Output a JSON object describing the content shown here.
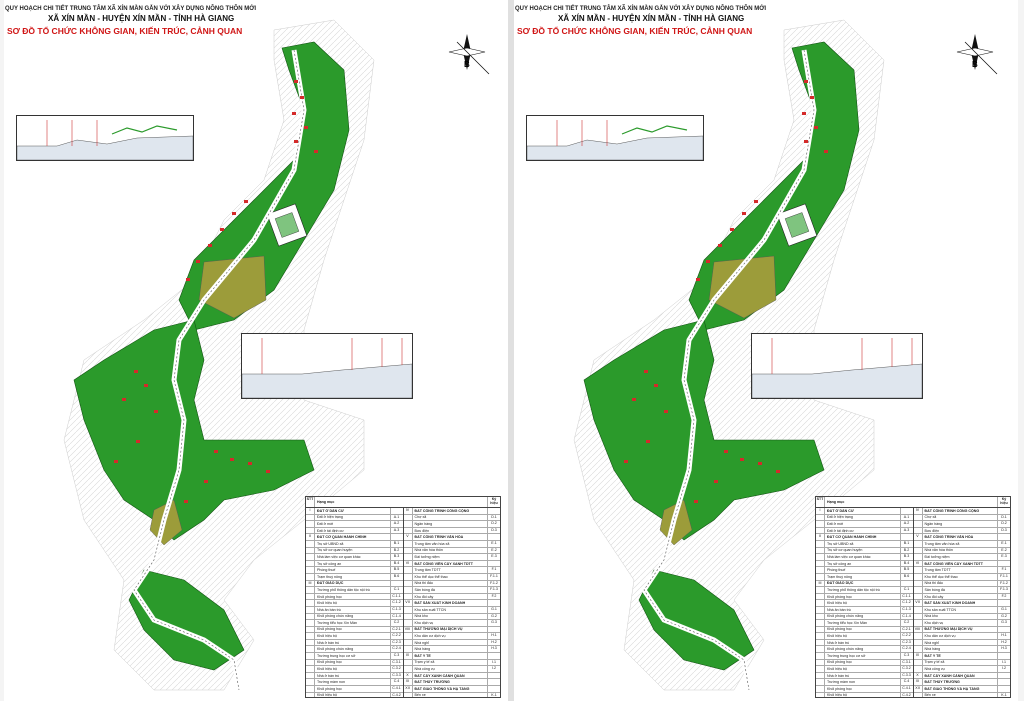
{
  "sheets": [
    {
      "title_line1": "QUY HOẠCH CHI TIẾT TRUNG TÂM XÃ XÍN MẦN GẮN VỚI XÂY DỰNG NÔNG THÔN MỚI",
      "title_line2": "XÃ XÍN MẦN - HUYỆN XÍN MẦN - TỈNH HÀ GIANG",
      "title_line3": "SƠ ĐỒ TỔ CHỨC KHÔNG GIAN, KIẾN TRÚC, CẢNH QUAN",
      "north_label": "B"
    },
    {
      "title_line1": "QUY HOẠCH CHI TIẾT TRUNG TÂM XÃ XÍN MẦN GẮN VỚI XÂY DỰNG NÔNG THÔN MỚI",
      "title_line2": "XÃ XÍN MẦN - HUYỆN XÍN MẦN - TỈNH HÀ GIANG",
      "title_line3": "SƠ ĐỒ TỔ CHỨC KHÔNG GIAN, KIẾN TRÚC, CẢNH QUAN",
      "north_label": "B"
    }
  ],
  "legend": {
    "header": {
      "no": "STT",
      "name": "Hạng mục",
      "code": "Ký hiệu"
    },
    "left_rows": [
      {
        "no": "I",
        "name": "ĐẤT Ở DÂN CƯ",
        "code": "",
        "grp": true
      },
      {
        "no": "",
        "name": "Đất ở hiện trạng",
        "code": "A.1",
        "grp": false
      },
      {
        "no": "",
        "name": "Đất ở mới",
        "code": "A.2",
        "grp": false
      },
      {
        "no": "",
        "name": "Đất ở tái định cư",
        "code": "A.3",
        "grp": false
      },
      {
        "no": "II",
        "name": "ĐẤT CƠ QUAN HÀNH CHÍNH",
        "code": "",
        "grp": true
      },
      {
        "no": "",
        "name": "Trụ sở UBND xã",
        "code": "B.1",
        "grp": false
      },
      {
        "no": "",
        "name": "Trụ sở cơ quan huyện",
        "code": "B.2",
        "grp": false
      },
      {
        "no": "",
        "name": "Nhà làm việc cơ quan khác",
        "code": "B.3",
        "grp": false
      },
      {
        "no": "",
        "name": "Trụ sở công an",
        "code": "B.4",
        "grp": false
      },
      {
        "no": "",
        "name": "Phòng thuế",
        "code": "B.5",
        "grp": false
      },
      {
        "no": "",
        "name": "Trạm thuỷ nông",
        "code": "B.6",
        "grp": false
      },
      {
        "no": "III",
        "name": "ĐẤT GIÁO DỤC",
        "code": "",
        "grp": true
      },
      {
        "no": "",
        "name": "Trường phổ thông dân tộc nội trú",
        "code": "C.1",
        "grp": false
      },
      {
        "no": "",
        "name": "Khối phòng học",
        "code": "C.1.1",
        "grp": false
      },
      {
        "no": "",
        "name": "Khối hiệu bộ",
        "code": "C.1.2",
        "grp": false
      },
      {
        "no": "",
        "name": "Nhà ăn bán trú",
        "code": "C.1.3",
        "grp": false
      },
      {
        "no": "",
        "name": "Khối phòng chức năng",
        "code": "C.1.4",
        "grp": false
      },
      {
        "no": "",
        "name": "Trường tiểu học Xín Mần",
        "code": "C.2",
        "grp": false
      },
      {
        "no": "",
        "name": "Khối phòng học",
        "code": "C.2.1",
        "grp": false
      },
      {
        "no": "",
        "name": "Khối hiệu bộ",
        "code": "C.2.2",
        "grp": false
      },
      {
        "no": "",
        "name": "Nhà ở bán trú",
        "code": "C.2.3",
        "grp": false
      },
      {
        "no": "",
        "name": "Khối phòng chức năng",
        "code": "C.2.4",
        "grp": false
      },
      {
        "no": "",
        "name": "Trường trung học cơ sở",
        "code": "C.3",
        "grp": false
      },
      {
        "no": "",
        "name": "Khối phòng học",
        "code": "C.3.1",
        "grp": false
      },
      {
        "no": "",
        "name": "Khối hiệu bộ",
        "code": "C.3.2",
        "grp": false
      },
      {
        "no": "",
        "name": "Nhà ở bán trú",
        "code": "C.3.3",
        "grp": false
      },
      {
        "no": "",
        "name": "Trường mầm non",
        "code": "C.4",
        "grp": false
      },
      {
        "no": "",
        "name": "Khối phòng học",
        "code": "C.4.1",
        "grp": false
      },
      {
        "no": "",
        "name": "Khối hiệu bộ",
        "code": "C.4.2",
        "grp": false
      },
      {
        "no": "",
        "name": "Khối phòng chức năng",
        "code": "C.4.3",
        "grp": false
      },
      {
        "no": "",
        "name": "Nhà bếp",
        "code": "C.4.4",
        "grp": false
      }
    ],
    "right_rows": [
      {
        "no": "IV",
        "name": "ĐẤT CÔNG TRÌNH CÔNG CỘNG",
        "code": "",
        "grp": true
      },
      {
        "no": "",
        "name": "Chợ xã",
        "code": "D.1",
        "grp": false
      },
      {
        "no": "",
        "name": "Ngân hàng",
        "code": "D.2",
        "grp": false
      },
      {
        "no": "",
        "name": "Bưu điện",
        "code": "D.3",
        "grp": false
      },
      {
        "no": "V",
        "name": "ĐẤT CÔNG TRÌNH VĂN HÓA",
        "code": "",
        "grp": true
      },
      {
        "no": "",
        "name": "Trung tâm văn hóa xã",
        "code": "E.1",
        "grp": false
      },
      {
        "no": "",
        "name": "Nhà văn hóa thôn",
        "code": "E.2",
        "grp": false
      },
      {
        "no": "",
        "name": "Đài tưởng niệm",
        "code": "E.3",
        "grp": false
      },
      {
        "no": "VI",
        "name": "ĐẤT CÔNG VIÊN CÂY XANH TDTT",
        "code": "",
        "grp": true
      },
      {
        "no": "",
        "name": "Trung tâm TDTT",
        "code": "F.1",
        "grp": false
      },
      {
        "no": "",
        "name": "Khu thể dục thể thao",
        "code": "F.1.1",
        "grp": false
      },
      {
        "no": "",
        "name": "Nhà thi đấu",
        "code": "F.1.2",
        "grp": false
      },
      {
        "no": "",
        "name": "Sân bóng đá",
        "code": "F.1.3",
        "grp": false
      },
      {
        "no": "",
        "name": "Khu đồi cây",
        "code": "F.2",
        "grp": false
      },
      {
        "no": "VII",
        "name": "ĐẤT SẢN XUẤT KINH DOANH",
        "code": "",
        "grp": true
      },
      {
        "no": "",
        "name": "Khu sản xuất TTCN",
        "code": "G.1",
        "grp": false
      },
      {
        "no": "",
        "name": "Nhà kho",
        "code": "G.2",
        "grp": false
      },
      {
        "no": "",
        "name": "Khu dịch vụ",
        "code": "G.3",
        "grp": false
      },
      {
        "no": "VIII",
        "name": "ĐẤT THƯƠNG MẠI DỊCH VỤ",
        "code": "",
        "grp": true
      },
      {
        "no": "",
        "name": "Khu dân cư dịch vụ",
        "code": "H.1",
        "grp": false
      },
      {
        "no": "",
        "name": "Nhà nghỉ",
        "code": "H.2",
        "grp": false
      },
      {
        "no": "",
        "name": "Nhà hàng",
        "code": "H.3",
        "grp": false
      },
      {
        "no": "IX",
        "name": "ĐẤT Y TẾ",
        "code": "",
        "grp": true
      },
      {
        "no": "",
        "name": "Trạm y tế xã",
        "code": "I.1",
        "grp": false
      },
      {
        "no": "",
        "name": "Nhà công vụ",
        "code": "I.2",
        "grp": false
      },
      {
        "no": "X",
        "name": "ĐẤT CÂY XANH CẢNH QUAN",
        "code": "",
        "grp": true
      },
      {
        "no": "XI",
        "name": "ĐẤT THỦY TRƯỜNG",
        "code": "",
        "grp": true
      },
      {
        "no": "XII",
        "name": "ĐẤT GIAO THÔNG VÀ HẠ TẦNG",
        "code": "",
        "grp": true
      },
      {
        "no": "",
        "name": "Bến xe",
        "code": "K.1",
        "grp": false
      },
      {
        "no": "",
        "name": "Đầu mối hạ tầng",
        "code": "K.2",
        "grp": false
      }
    ]
  },
  "colors": {
    "green": "#2b9a2b",
    "dark_green": "#1d7a1d",
    "olive": "#9c9c3a",
    "house_red": "#d42a2a",
    "road": "#ffffff",
    "terrain": "#eeeeee"
  }
}
